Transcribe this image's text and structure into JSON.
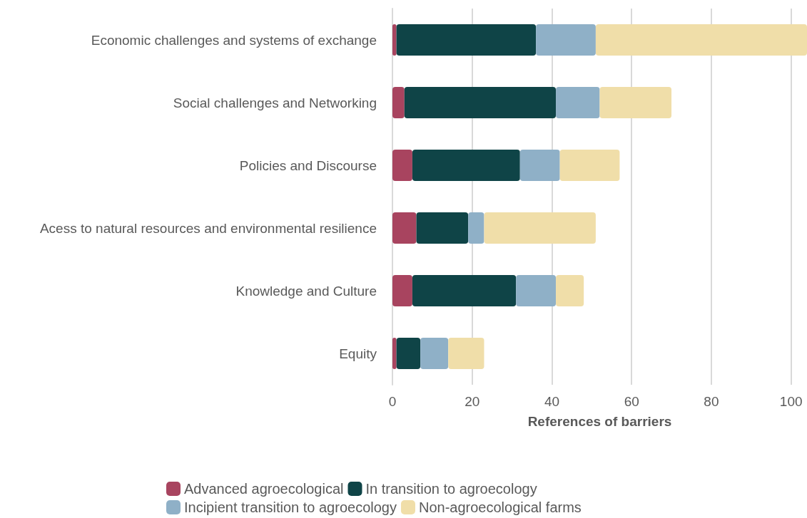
{
  "chart_data": {
    "type": "bar",
    "orientation": "horizontal",
    "stacked": true,
    "xlabel": "References of barriers",
    "categories": [
      "Economic challenges and systems of exchange",
      "Social challenges and Networking",
      "Policies and Discourse",
      "Acess to natural resources and environmental resilience",
      "Knowledge and Culture",
      "Equity"
    ],
    "series": [
      {
        "name": "Advanced agroecological",
        "color": "#a8445f",
        "values": [
          1,
          3,
          5,
          6,
          5,
          1
        ]
      },
      {
        "name": "In transition to agroecology",
        "color": "#0f4447",
        "values": [
          35,
          38,
          27,
          13,
          26,
          6
        ]
      },
      {
        "name": "Incipient transition to agroecology",
        "color": "#8fb0c7",
        "values": [
          15,
          11,
          10,
          4,
          10,
          7
        ]
      },
      {
        "name": "Non-agroecological farms",
        "color": "#f0dea9",
        "values": [
          53,
          18,
          15,
          28,
          7,
          9
        ]
      }
    ],
    "xlim": [
      0,
      104
    ],
    "xticks": [
      0,
      20,
      40,
      60,
      80,
      100
    ],
    "grid": "x",
    "legend": "bottom"
  }
}
